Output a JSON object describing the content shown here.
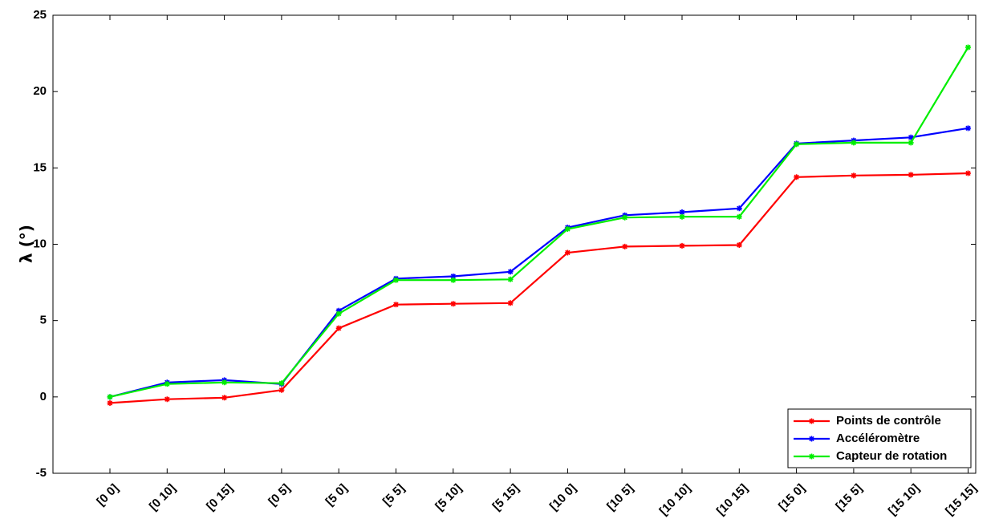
{
  "chart_data": {
    "type": "line",
    "categories": [
      "[0 0]",
      "[0 10]",
      "[0 15]",
      "[0 5]",
      "[5 0]",
      "[5 5]",
      "[5 10]",
      "[5 15]",
      "[10 0]",
      "[10 5]",
      "[10 10]",
      "[10 15]",
      "[15 0]",
      "[15 5]",
      "[15 10]",
      "[15 15]"
    ],
    "ylabel": "λ (°)",
    "ylim": [
      -5,
      25
    ],
    "yticks": [
      -5,
      0,
      5,
      10,
      15,
      20,
      25
    ],
    "ytick_labels": [
      "-5",
      "0",
      "5",
      "10",
      "15",
      "20",
      "25"
    ],
    "grid": false,
    "legend_position": "bottom-right",
    "series": [
      {
        "name": "Points de contrôle",
        "color": "#ff0000",
        "values": [
          -0.4,
          -0.15,
          -0.05,
          0.45,
          4.5,
          6.05,
          6.1,
          6.15,
          9.45,
          9.85,
          9.9,
          9.95,
          14.4,
          14.5,
          14.55,
          14.65
        ]
      },
      {
        "name": "Accéléromètre",
        "color": "#0000ff",
        "values": [
          0.0,
          0.95,
          1.1,
          0.85,
          5.65,
          7.75,
          7.9,
          8.2,
          11.1,
          11.9,
          12.1,
          12.35,
          16.6,
          16.8,
          17.0,
          17.6
        ]
      },
      {
        "name": "Capteur de rotation",
        "color": "#00ee00",
        "values": [
          0.0,
          0.85,
          0.95,
          0.9,
          5.45,
          7.65,
          7.65,
          7.7,
          11.0,
          11.75,
          11.8,
          11.8,
          16.55,
          16.65,
          16.65,
          22.9
        ]
      }
    ]
  }
}
